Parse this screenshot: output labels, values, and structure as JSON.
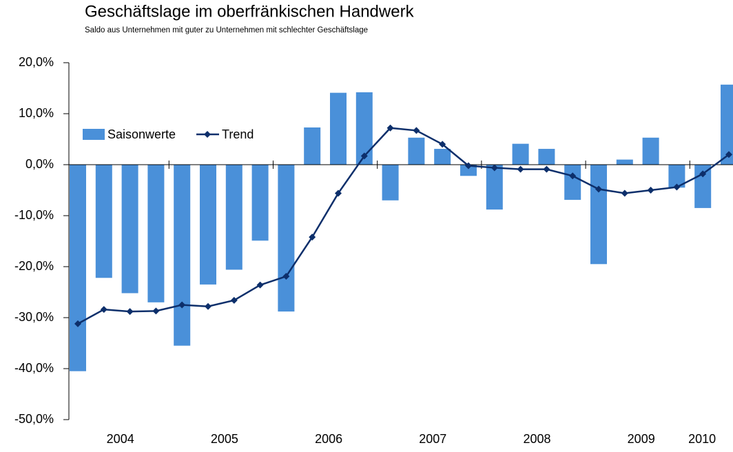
{
  "chart_data": {
    "type": "bar",
    "title": "Geschäftslage im oberfränkischen Handwerk",
    "subtitle": "Saldo aus Unternehmen mit guter zu Unternehmen mit schlechter Geschäftslage",
    "categories": [
      "2004",
      null,
      null,
      null,
      "2005",
      null,
      null,
      null,
      "2006",
      null,
      null,
      null,
      "2007",
      null,
      null,
      null,
      "2008",
      null,
      null,
      null,
      "2009",
      null,
      null,
      null,
      "2010",
      null
    ],
    "series": [
      {
        "name": "Saisonwerte",
        "type": "bar",
        "color": "#4a90d9",
        "values": [
          -40.5,
          -22.2,
          -25.2,
          -27.0,
          -35.5,
          -23.5,
          -20.6,
          -14.9,
          -28.8,
          7.3,
          14.1,
          14.2,
          -7.0,
          5.3,
          3.1,
          -2.2,
          -8.8,
          4.1,
          3.1,
          -6.9,
          -19.5,
          1.0,
          5.3,
          -4.5,
          -8.5,
          15.7
        ]
      },
      {
        "name": "Trend",
        "type": "line",
        "color": "#0d2f6b",
        "values": [
          -31.2,
          -28.4,
          -28.8,
          -28.7,
          -27.5,
          -27.8,
          -26.6,
          -23.6,
          -21.9,
          -14.2,
          -5.6,
          1.7,
          7.2,
          6.7,
          4.0,
          -0.2,
          -0.6,
          -0.9,
          -0.9,
          -2.2,
          -4.8,
          -5.6,
          -5.0,
          -4.4,
          -1.8,
          2.0
        ]
      }
    ],
    "ylim": [
      -50,
      20
    ],
    "yticks": [
      {
        "value": -50,
        "label": "-50,0%"
      },
      {
        "value": -40,
        "label": "-40,0%"
      },
      {
        "value": -30,
        "label": "-30,0%"
      },
      {
        "value": -20,
        "label": "-20,0%"
      },
      {
        "value": -10,
        "label": "-10,0%"
      },
      {
        "value": 0,
        "label": "0,0%"
      },
      {
        "value": 10,
        "label": "10,0%"
      },
      {
        "value": 20,
        "label": "20,0%"
      }
    ],
    "legend": "upper left"
  }
}
